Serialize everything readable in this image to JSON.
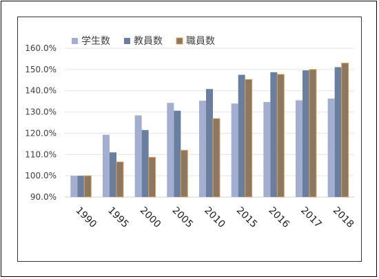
{
  "chart_data": {
    "type": "bar",
    "title": "",
    "xlabel": "",
    "ylabel": "",
    "categories": [
      "1990",
      "1995",
      "2000",
      "2005",
      "2010",
      "2015",
      "2016",
      "2017",
      "2018"
    ],
    "series": [
      {
        "name": "学生数",
        "color": "#a4aed0",
        "values": [
          100.0,
          119.3,
          128.4,
          134.3,
          135.3,
          134.0,
          134.7,
          135.5,
          136.3
        ]
      },
      {
        "name": "教員数",
        "color": "#6a7fa0",
        "values": [
          100.0,
          111.0,
          121.5,
          130.6,
          140.8,
          147.5,
          148.7,
          149.6,
          151.1
        ]
      },
      {
        "name": "職員数",
        "color": "#8c7862",
        "edge": "#e0a25c",
        "values": [
          100.0,
          106.5,
          108.7,
          112.0,
          126.9,
          145.3,
          147.7,
          150.0,
          153.0
        ]
      }
    ],
    "ylim": [
      90,
      160
    ],
    "yticks": [
      "90.0%",
      "100.0%",
      "110.0%",
      "120.0%",
      "130.0%",
      "140.0%",
      "150.0%",
      "160.0%"
    ],
    "grid": true,
    "legend_position": "top-left"
  }
}
